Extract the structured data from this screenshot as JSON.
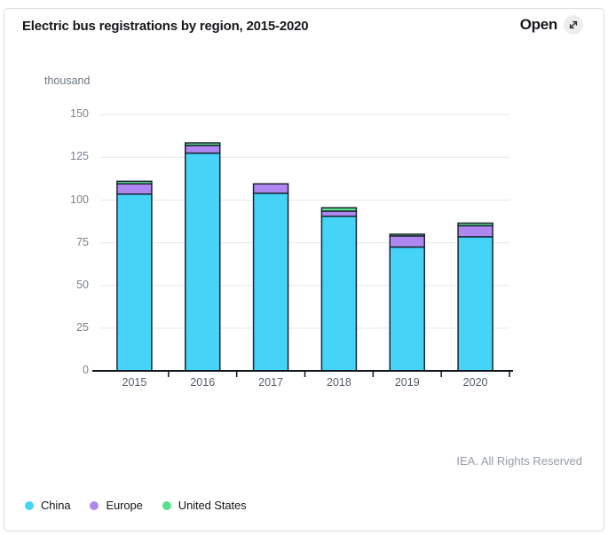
{
  "header": {
    "title": "Electric bus registrations by region, 2015-2020",
    "open_label": "Open",
    "open_icon": "expand-diagonal-arrow-icon"
  },
  "chart_data": {
    "type": "bar",
    "stacked": true,
    "title": "Electric bus registrations by region, 2015-2020",
    "unit_label": "thousand",
    "ylabel": "thousand",
    "xlabel": "",
    "categories": [
      "2015",
      "2016",
      "2017",
      "2018",
      "2019",
      "2020"
    ],
    "series": [
      {
        "name": "China",
        "color": "#45D3F7",
        "values": [
          103.5,
          127.5,
          104.0,
          90.5,
          72.5,
          78.5
        ]
      },
      {
        "name": "Europe",
        "color": "#AE87F0",
        "values": [
          6.0,
          4.5,
          5.5,
          3.0,
          6.5,
          6.5
        ]
      },
      {
        "name": "United States",
        "color": "#5ADF8C",
        "values": [
          1.5,
          1.5,
          0.0,
          2.0,
          1.0,
          1.5
        ]
      }
    ],
    "totals": [
      111.0,
      133.5,
      109.5,
      95.5,
      80.0,
      86.5
    ],
    "yticks": [
      0,
      25,
      50,
      75,
      100,
      125,
      150
    ],
    "ylim": [
      0,
      150
    ],
    "grid": true,
    "legend_position": "bottom-left",
    "bar_outline_color": "#1a2430",
    "gridline_color": "#e8e8e8",
    "axis_color": "#10161d"
  },
  "footer": {
    "copyright": "IEA. All Rights Reserved"
  }
}
